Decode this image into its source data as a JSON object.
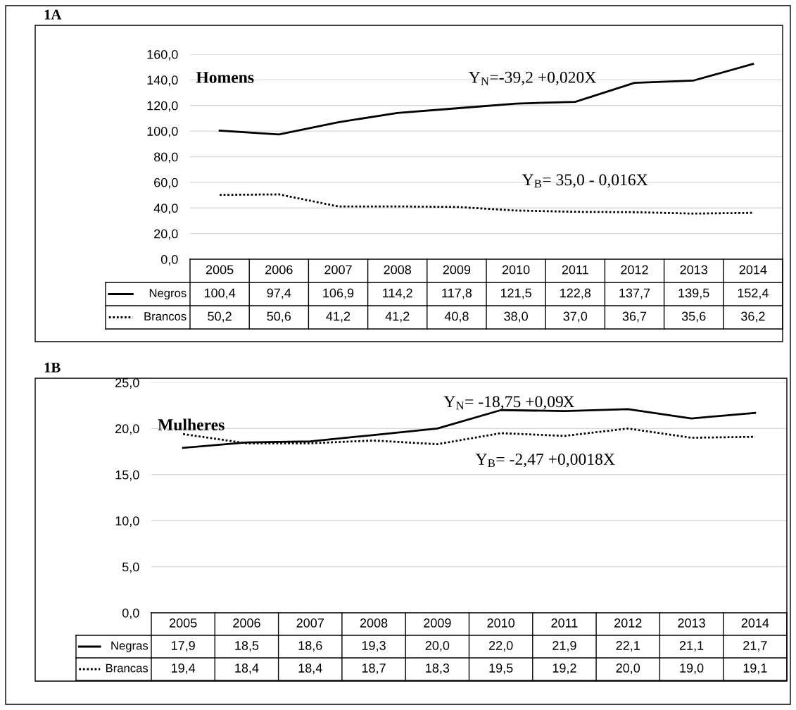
{
  "chart_data": [
    {
      "type": "line",
      "title": "1A",
      "categories": [
        "2005",
        "2006",
        "2007",
        "2008",
        "2009",
        "2010",
        "2011",
        "2012",
        "2013",
        "2014"
      ],
      "series": [
        {
          "name": "Negros",
          "color": "#000000",
          "line_style": "solid",
          "values": [
            100.4,
            97.4,
            106.9,
            114.2,
            117.8,
            121.5,
            122.8,
            137.7,
            139.5,
            152.4
          ],
          "value_labels": [
            "100,4",
            "97,4",
            "106,9",
            "114,2",
            "117,8",
            "121,5",
            "122,8",
            "137,7",
            "139,5",
            "152,4"
          ]
        },
        {
          "name": "Brancos",
          "color": "#000000",
          "line_style": "dotted",
          "values": [
            50.2,
            50.6,
            41.2,
            41.2,
            40.8,
            38.0,
            37.0,
            36.7,
            35.6,
            36.2
          ],
          "value_labels": [
            "50,2",
            "50,6",
            "41,2",
            "41,2",
            "40,8",
            "38,0",
            "37,0",
            "36,7",
            "35,6",
            "36,2"
          ]
        }
      ],
      "ylim": [
        0,
        160
      ],
      "yticks": [
        {
          "value": 0,
          "label": "0,0"
        },
        {
          "value": 20,
          "label": "20,0"
        },
        {
          "value": 40,
          "label": "40,0"
        },
        {
          "value": 60,
          "label": "60,0"
        },
        {
          "value": 80,
          "label": "80,0"
        },
        {
          "value": 100,
          "label": "100,0"
        },
        {
          "value": 120,
          "label": "120,0"
        },
        {
          "value": 140,
          "label": "140,0"
        },
        {
          "value": 160,
          "label": "160,0"
        }
      ],
      "grid": "y",
      "legend": "bottom",
      "annotations": [
        "Homens",
        "Y$_{N}$=-39,2 +0,020X",
        "Y$_{B}$= 35,0 - 0,016X"
      ]
    },
    {
      "type": "line",
      "title": "1B",
      "categories": [
        "2005",
        "2006",
        "2007",
        "2008",
        "2009",
        "2010",
        "2011",
        "2012",
        "2013",
        "2014"
      ],
      "series": [
        {
          "name": "Negras",
          "color": "#000000",
          "line_style": "solid",
          "values": [
            17.9,
            18.5,
            18.6,
            19.3,
            20.0,
            22.0,
            21.9,
            22.1,
            21.1,
            21.7
          ],
          "value_labels": [
            "17,9",
            "18,5",
            "18,6",
            "19,3",
            "20,0",
            "22,0",
            "21,9",
            "22,1",
            "21,1",
            "21,7"
          ]
        },
        {
          "name": "Brancas",
          "color": "#000000",
          "line_style": "dotted",
          "values": [
            19.4,
            18.4,
            18.4,
            18.7,
            18.3,
            19.5,
            19.2,
            20.0,
            19.0,
            19.1
          ],
          "value_labels": [
            "19,4",
            "18,4",
            "18,4",
            "18,7",
            "18,3",
            "19,5",
            "19,2",
            "20,0",
            "19,0",
            "19,1"
          ]
        }
      ],
      "ylim": [
        0,
        25
      ],
      "yticks": [
        {
          "value": 0,
          "label": "0,0"
        },
        {
          "value": 5,
          "label": "5,0"
        },
        {
          "value": 10,
          "label": "10,0"
        },
        {
          "value": 15,
          "label": "15,0"
        },
        {
          "value": 20,
          "label": "20,0"
        },
        {
          "value": 25,
          "label": "25,0"
        }
      ],
      "grid": "y",
      "legend": "bottom",
      "annotations": [
        "Mulheres",
        "Y$_{N}$= -18,75 +0,09X",
        "Y$_{B}$= -2,47 +0,0018X"
      ]
    }
  ]
}
